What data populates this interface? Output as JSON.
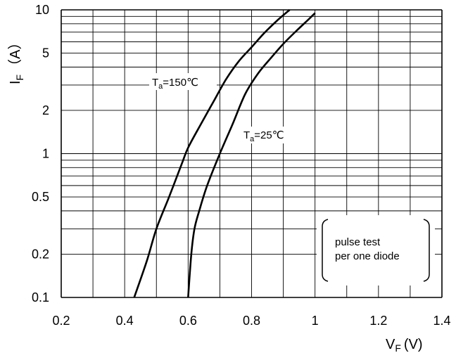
{
  "chart_data": {
    "type": "line",
    "title": "",
    "xlabel": {
      "main": "V",
      "sub": "F",
      "unit": "(V)"
    },
    "ylabel": {
      "main": "I",
      "sub": "F",
      "unit": "（A）"
    },
    "xlim": [
      0.2,
      1.4
    ],
    "ylim": [
      0.1,
      10
    ],
    "yscale": "log",
    "x_ticks": [
      {
        "value": 0.2,
        "label": "0.2"
      },
      {
        "value": 0.4,
        "label": "0.4"
      },
      {
        "value": 0.6,
        "label": "0.6"
      },
      {
        "value": 0.8,
        "label": "0.8"
      },
      {
        "value": 1.0,
        "label": "1"
      },
      {
        "value": 1.2,
        "label": "1.2"
      },
      {
        "value": 1.4,
        "label": "1.4"
      }
    ],
    "y_ticks": [
      {
        "value": 0.1,
        "label": "0.1"
      },
      {
        "value": 0.2,
        "label": "0.2"
      },
      {
        "value": 0.5,
        "label": "0.5"
      },
      {
        "value": 1,
        "label": "1"
      },
      {
        "value": 2,
        "label": "2"
      },
      {
        "value": 5,
        "label": "5"
      },
      {
        "value": 10,
        "label": "10"
      }
    ],
    "grid": {
      "x_minor_step": 0.1,
      "y_minor": [
        0.1,
        0.2,
        0.3,
        0.4,
        0.5,
        0.6,
        0.7,
        0.8,
        0.9,
        1,
        2,
        3,
        4,
        5,
        6,
        7,
        8,
        9,
        10
      ]
    },
    "series": [
      {
        "label": {
          "main": "T",
          "sub": "a",
          "rest": "=150℃"
        },
        "points": [
          [
            0.43,
            0.1
          ],
          [
            0.47,
            0.18
          ],
          [
            0.5,
            0.3
          ],
          [
            0.54,
            0.5
          ],
          [
            0.58,
            0.85
          ],
          [
            0.6,
            1.1
          ],
          [
            0.64,
            1.6
          ],
          [
            0.68,
            2.3
          ],
          [
            0.72,
            3.3
          ],
          [
            0.76,
            4.4
          ],
          [
            0.8,
            5.5
          ],
          [
            0.84,
            6.9
          ],
          [
            0.88,
            8.4
          ],
          [
            0.92,
            10
          ]
        ]
      },
      {
        "label": {
          "main": "T",
          "sub": "a",
          "rest": "=25℃"
        },
        "points": [
          [
            0.6,
            0.1
          ],
          [
            0.61,
            0.2
          ],
          [
            0.62,
            0.3
          ],
          [
            0.635,
            0.4
          ],
          [
            0.66,
            0.6
          ],
          [
            0.7,
            1.0
          ],
          [
            0.74,
            1.6
          ],
          [
            0.78,
            2.6
          ],
          [
            0.82,
            3.6
          ],
          [
            0.86,
            4.6
          ],
          [
            0.9,
            5.8
          ],
          [
            0.94,
            7.1
          ],
          [
            0.98,
            8.6
          ],
          [
            1.0,
            9.5
          ]
        ]
      }
    ],
    "annotation": {
      "lines": [
        "pulse test",
        "per one diode"
      ]
    }
  }
}
